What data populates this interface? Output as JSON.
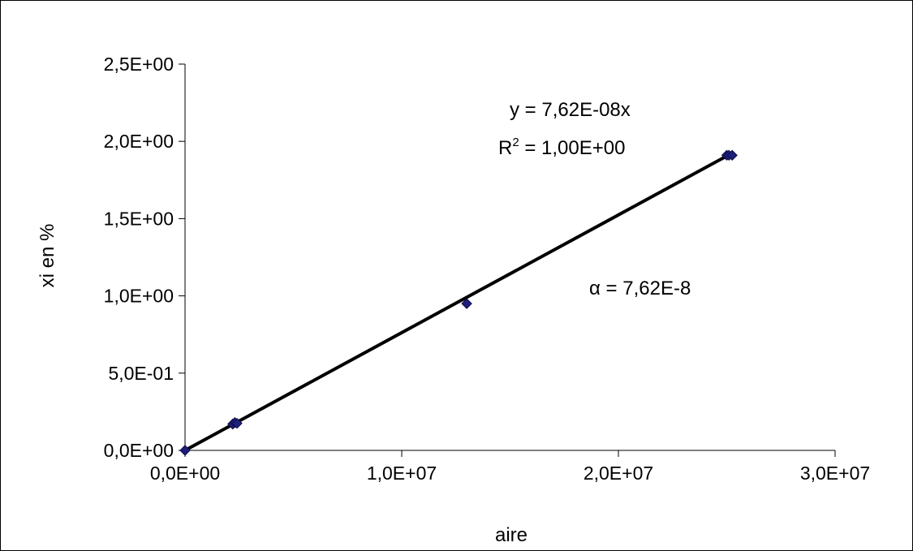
{
  "chart_data": {
    "type": "scatter",
    "title": "",
    "xlabel": "aire",
    "ylabel": "xi en %",
    "xlim": [
      0,
      30000000
    ],
    "ylim": [
      0,
      2.5
    ],
    "x_ticks": [
      0,
      10000000,
      20000000,
      30000000
    ],
    "x_tick_labels": [
      "0,0E+00",
      "1,0E+07",
      "2,0E+07",
      "3,0E+07"
    ],
    "y_ticks": [
      0,
      0.5,
      1.0,
      1.5,
      2.0,
      2.5
    ],
    "y_tick_labels": [
      "0,0E+00",
      "5,0E-01",
      "1,0E+00",
      "1,5E+00",
      "2,0E+00",
      "2,5E+00"
    ],
    "grid": false,
    "legend": "none",
    "points": [
      {
        "x": 0,
        "y": 0
      },
      {
        "x": 2200000,
        "y": 0.17
      },
      {
        "x": 2300000,
        "y": 0.18
      },
      {
        "x": 2400000,
        "y": 0.175
      },
      {
        "x": 13000000,
        "y": 0.95
      },
      {
        "x": 25000000,
        "y": 1.91
      },
      {
        "x": 25100000,
        "y": 1.91
      },
      {
        "x": 25250000,
        "y": 1.91
      }
    ],
    "trendline": {
      "slope": 7.62e-08,
      "x_range": [
        0,
        25200000
      ]
    },
    "marker_color": "#1f1f7a",
    "line_color": "#000000",
    "annotations": {
      "equation": "y = 7,62E-08x",
      "r2_prefix": "R",
      "r2_sup": "2",
      "r2_value": " = 1,00E+00",
      "alpha": "α = 7,62E-8"
    }
  }
}
